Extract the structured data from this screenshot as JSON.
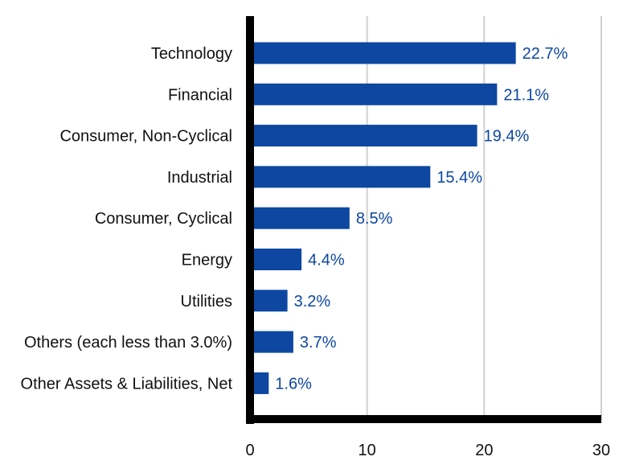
{
  "chart_data": {
    "type": "bar",
    "orientation": "horizontal",
    "title": "",
    "xlabel": "",
    "ylabel": "",
    "categories": [
      "Technology",
      "Financial",
      "Consumer, Non-Cyclical",
      "Industrial",
      "Consumer, Cyclical",
      "Energy",
      "Utilities",
      "Others (each less than 3.0%)",
      "Other Assets & Liabilities, Net"
    ],
    "values": [
      22.7,
      21.1,
      19.4,
      15.4,
      8.5,
      4.4,
      3.2,
      3.7,
      1.6
    ],
    "value_labels": [
      "22.7%",
      "21.1%",
      "19.4%",
      "15.4%",
      "8.5%",
      "4.4%",
      "3.2%",
      "3.7%",
      "1.6%"
    ],
    "xlim": [
      0,
      30
    ],
    "xticks": [
      0,
      10,
      20,
      30
    ],
    "xtick_labels": [
      "0",
      "10",
      "20",
      "30"
    ],
    "grid": true,
    "legend": "none",
    "colors": {
      "bar": "#0d47a1",
      "value_label": "#0d47a1",
      "axis": "#000000",
      "grid": "#d0d0d0"
    }
  }
}
